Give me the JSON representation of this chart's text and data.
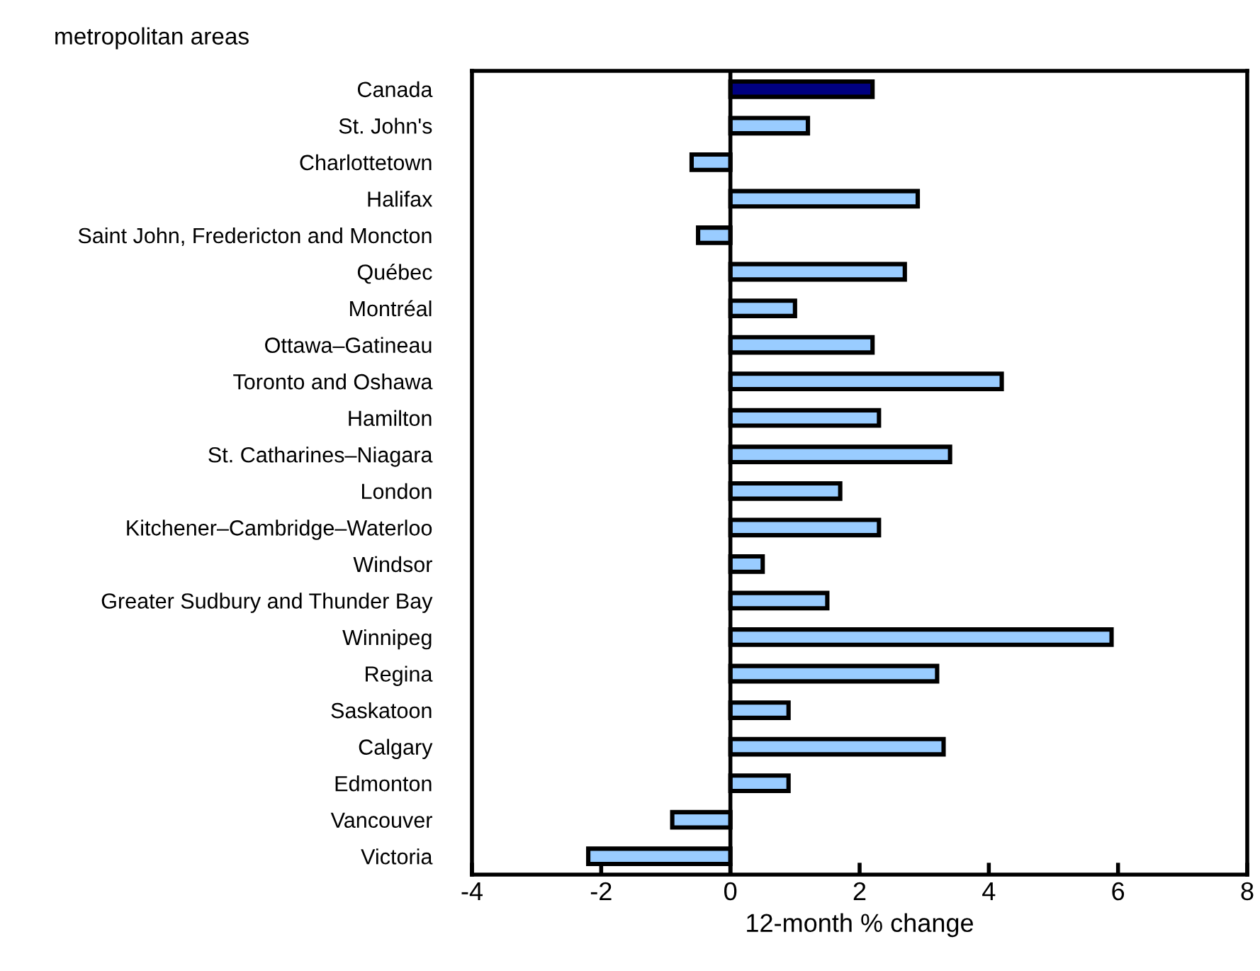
{
  "chart_data": {
    "type": "bar",
    "orientation": "horizontal",
    "title": "metropolitan areas",
    "xlabel": "12-month % change",
    "categories": [
      "Canada",
      "St. John's",
      "Charlottetown",
      "Halifax",
      "Saint John, Fredericton and Moncton",
      "Québec",
      "Montréal",
      "Ottawa–Gatineau",
      "Toronto and Oshawa",
      "Hamilton",
      "St. Catharines–Niagara",
      "London",
      "Kitchener–Cambridge–Waterloo",
      "Windsor",
      "Greater Sudbury and Thunder Bay",
      "Winnipeg",
      "Regina",
      "Saskatoon",
      "Calgary",
      "Edmonton",
      "Vancouver",
      "Victoria"
    ],
    "values": [
      2.2,
      1.2,
      -0.6,
      2.9,
      -0.5,
      2.7,
      1.0,
      2.2,
      4.2,
      2.3,
      3.4,
      1.7,
      2.3,
      0.5,
      1.5,
      5.9,
      3.2,
      0.9,
      3.3,
      0.9,
      -0.9,
      -2.2
    ],
    "colors": [
      "#000080",
      "#99ccff",
      "#99ccff",
      "#99ccff",
      "#99ccff",
      "#99ccff",
      "#99ccff",
      "#99ccff",
      "#99ccff",
      "#99ccff",
      "#99ccff",
      "#99ccff",
      "#99ccff",
      "#99ccff",
      "#99ccff",
      "#99ccff",
      "#99ccff",
      "#99ccff",
      "#99ccff",
      "#99ccff",
      "#99ccff",
      "#99ccff"
    ],
    "xlim": [
      -4,
      8
    ],
    "xticks": [
      -4,
      -2,
      0,
      2,
      4,
      6,
      8
    ]
  }
}
